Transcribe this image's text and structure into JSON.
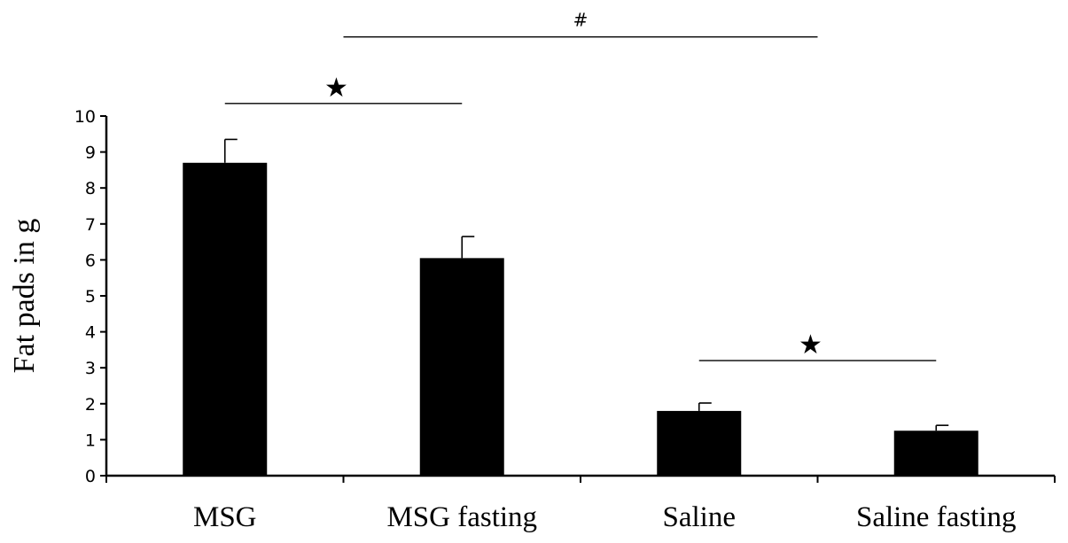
{
  "chart_data": {
    "type": "bar",
    "title": "",
    "xlabel": "",
    "ylabel": "Fat pads in g",
    "ylim": [
      0,
      10
    ],
    "yticks": [
      0,
      1,
      2,
      3,
      4,
      5,
      6,
      7,
      8,
      9,
      10
    ],
    "categories": [
      "MSG",
      "MSG fasting",
      "Saline",
      "Saline fasting"
    ],
    "values": [
      8.7,
      6.05,
      1.8,
      1.25
    ],
    "errors": [
      0.65,
      0.6,
      0.22,
      0.15
    ],
    "bar_color": "#000000",
    "grid": false,
    "legend": "none",
    "significance": [
      {
        "from": 0,
        "to": 1,
        "y": 10.35,
        "label": "★"
      },
      {
        "from": 2,
        "to": 3,
        "y": 3.2,
        "label": "★"
      },
      {
        "from": 0.5,
        "to": 2.5,
        "y": 12.2,
        "label": "#"
      }
    ]
  }
}
